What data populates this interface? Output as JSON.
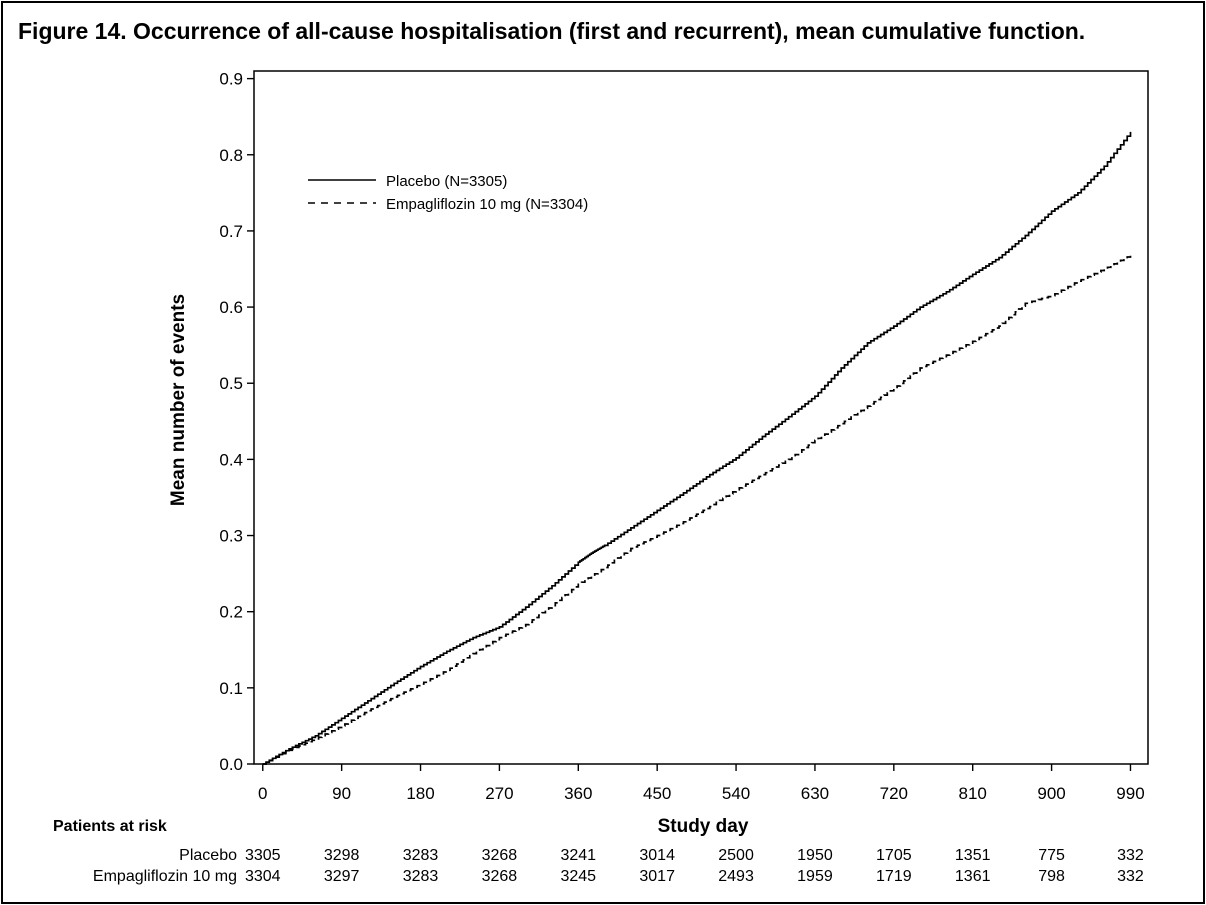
{
  "figure": {
    "title": "Figure 14. Occurrence of all-cause hospitalisation (first and recurrent), mean cumulative function."
  },
  "chart_data": {
    "type": "line",
    "xlabel": "Study day",
    "ylabel": "Mean number of events",
    "xlim": [
      -10,
      1010
    ],
    "ylim": [
      0,
      0.91
    ],
    "x_ticks": [
      0,
      90,
      180,
      270,
      360,
      450,
      540,
      630,
      720,
      810,
      900,
      990
    ],
    "y_ticks": [
      0.0,
      0.1,
      0.2,
      0.3,
      0.4,
      0.5,
      0.6,
      0.7,
      0.8,
      0.9
    ],
    "grid": false,
    "legend_position": "top-left",
    "series": [
      {
        "name": "Placebo (N=3305)",
        "line_style": "solid",
        "color": "#000000",
        "x": [
          0,
          30,
          60,
          90,
          120,
          150,
          180,
          210,
          240,
          270,
          300,
          330,
          360,
          375,
          390,
          420,
          450,
          480,
          510,
          540,
          570,
          600,
          630,
          660,
          690,
          720,
          750,
          780,
          810,
          840,
          870,
          900,
          930,
          960,
          990
        ],
        "y": [
          0.0,
          0.02,
          0.037,
          0.06,
          0.083,
          0.106,
          0.128,
          0.148,
          0.166,
          0.18,
          0.206,
          0.234,
          0.265,
          0.277,
          0.287,
          0.31,
          0.333,
          0.356,
          0.38,
          0.402,
          0.43,
          0.456,
          0.483,
          0.52,
          0.553,
          0.575,
          0.6,
          0.62,
          0.643,
          0.665,
          0.694,
          0.726,
          0.75,
          0.785,
          0.83
        ]
      },
      {
        "name": "Empagliflozin 10 mg (N=3304)",
        "line_style": "dashed",
        "color": "#000000",
        "x": [
          0,
          30,
          60,
          90,
          120,
          150,
          180,
          210,
          240,
          270,
          300,
          330,
          360,
          390,
          420,
          450,
          480,
          510,
          540,
          570,
          600,
          630,
          660,
          690,
          720,
          750,
          780,
          810,
          840,
          870,
          900,
          930,
          960,
          990
        ],
        "y": [
          0.0,
          0.018,
          0.033,
          0.05,
          0.07,
          0.088,
          0.105,
          0.123,
          0.145,
          0.166,
          0.183,
          0.208,
          0.236,
          0.258,
          0.283,
          0.3,
          0.318,
          0.338,
          0.36,
          0.38,
          0.4,
          0.425,
          0.447,
          0.47,
          0.493,
          0.52,
          0.537,
          0.555,
          0.575,
          0.605,
          0.615,
          0.634,
          0.65,
          0.668
        ]
      }
    ],
    "risk_table": {
      "header": "Patients at risk",
      "rows": [
        {
          "label": "Placebo",
          "values": [
            "3305",
            "3298",
            "3283",
            "3268",
            "3241",
            "3014",
            "2500",
            "1950",
            "1705",
            "1351",
            "775",
            "332"
          ]
        },
        {
          "label": "Empagliflozin 10 mg",
          "values": [
            "3304",
            "3297",
            "3283",
            "3268",
            "3245",
            "3017",
            "2493",
            "1959",
            "1719",
            "1361",
            "798",
            "332"
          ]
        }
      ]
    }
  }
}
